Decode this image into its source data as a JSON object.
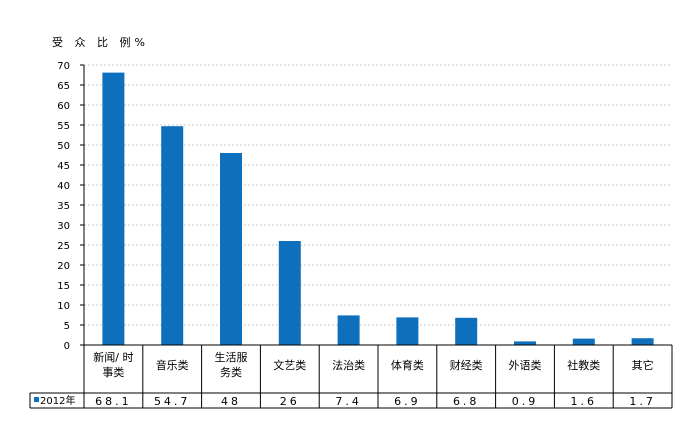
{
  "chart_data": {
    "type": "bar",
    "ylabel": "受 众 比 例%",
    "ylim": [
      0,
      70
    ],
    "ytick_step": 5,
    "grid": true,
    "categories": [
      [
        "新闻/ 时",
        "事类"
      ],
      [
        "音乐类"
      ],
      [
        "生活服",
        "务类"
      ],
      [
        "文艺类"
      ],
      [
        "法治类"
      ],
      [
        "体育类"
      ],
      [
        "财经类"
      ],
      [
        "外语类"
      ],
      [
        "社教类"
      ],
      [
        "其它"
      ]
    ],
    "series": [
      {
        "name": "2012年",
        "values": [
          68.1,
          54.7,
          48,
          26,
          7.4,
          6.9,
          6.8,
          0.9,
          1.6,
          1.7
        ],
        "labels": [
          "68.1",
          "54.7",
          "48",
          "26",
          "7.4",
          "6.9",
          "6.8",
          "0.9",
          "1.6",
          "1.7"
        ],
        "color": "#0e6fbd"
      }
    ]
  }
}
